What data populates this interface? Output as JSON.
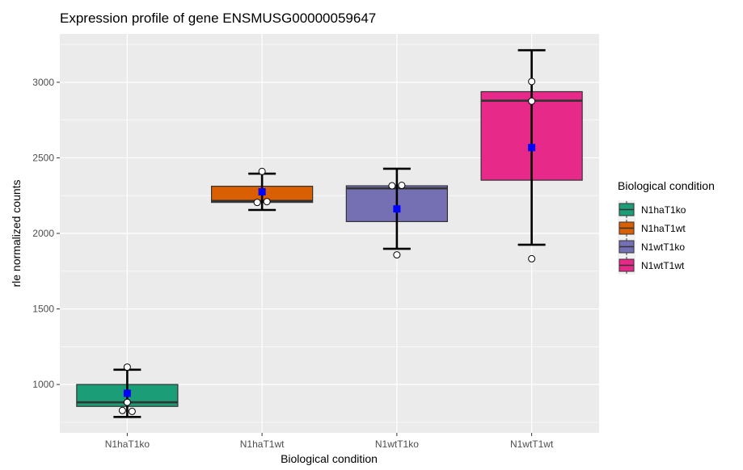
{
  "chart_data": {
    "type": "box",
    "title": "Expression profile of gene ENSMUSG00000059647",
    "xlabel": "Biological condition",
    "ylabel": "rle normalized counts",
    "ylim": [
      680,
      3320
    ],
    "yticks": [
      1000,
      1500,
      2000,
      2500,
      3000
    ],
    "grid": true,
    "legend_title": "Biological condition",
    "legend_position": "right",
    "categories": [
      "N1haT1ko",
      "N1haT1wt",
      "N1wtT1ko",
      "N1wtT1wt"
    ],
    "colors": [
      "#1b9e77",
      "#d95f02",
      "#7570b3",
      "#e7298a"
    ],
    "boxes": [
      {
        "q1": 855,
        "median": 882,
        "q3": 1000,
        "mean": 942,
        "err_low": 785,
        "err_high": 1098,
        "points": [
          1115,
          882,
          828,
          822
        ]
      },
      {
        "q1": 2205,
        "median": 2215,
        "q3": 2312,
        "mean": 2275,
        "err_low": 2155,
        "err_high": 2395,
        "points": [
          2410,
          2205,
          2210
        ]
      },
      {
        "q1": 2078,
        "median": 2298,
        "q3": 2315,
        "mean": 2162,
        "err_low": 1898,
        "err_high": 2428,
        "points": [
          2315,
          2318,
          1858
        ]
      },
      {
        "q1": 2352,
        "median": 2878,
        "q3": 2938,
        "mean": 2568,
        "err_low": 1925,
        "err_high": 3212,
        "points": [
          3005,
          2875,
          1832
        ]
      }
    ]
  }
}
